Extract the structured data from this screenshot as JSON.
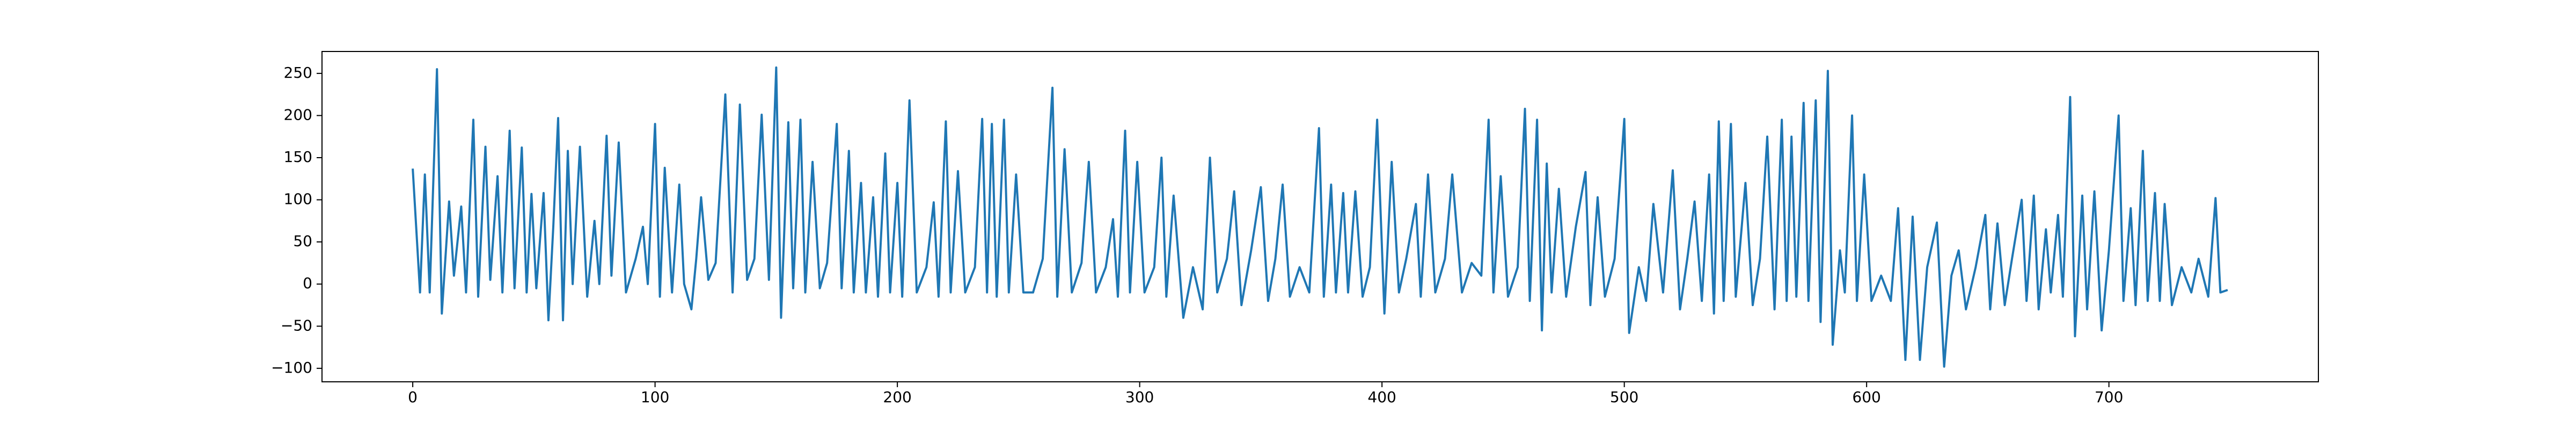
{
  "chart_data": {
    "type": "line",
    "x": [
      0,
      3,
      5,
      7,
      10,
      12,
      15,
      17,
      20,
      22,
      25,
      27,
      30,
      32,
      35,
      37,
      40,
      42,
      45,
      47,
      49,
      51,
      54,
      56,
      58,
      60,
      62,
      64,
      66,
      69,
      72,
      75,
      77,
      80,
      82,
      85,
      88,
      92,
      95,
      97,
      100,
      102,
      104,
      107,
      110,
      112,
      115,
      117,
      119,
      122,
      125,
      129,
      132,
      135,
      138,
      141,
      144,
      147,
      150,
      152,
      155,
      157,
      160,
      162,
      165,
      168,
      171,
      175,
      177,
      180,
      182,
      185,
      187,
      190,
      192,
      195,
      197,
      200,
      202,
      205,
      208,
      212,
      215,
      217,
      220,
      222,
      225,
      228,
      232,
      235,
      237,
      239,
      241,
      244,
      246,
      249,
      252,
      256,
      260,
      264,
      266,
      269,
      272,
      276,
      279,
      282,
      286,
      289,
      291,
      294,
      296,
      299,
      302,
      306,
      309,
      311,
      314,
      318,
      322,
      326,
      329,
      332,
      336,
      339,
      342,
      346,
      350,
      353,
      356,
      359,
      362,
      366,
      370,
      374,
      376,
      379,
      381,
      384,
      386,
      389,
      392,
      395,
      398,
      401,
      404,
      407,
      410,
      414,
      416,
      419,
      422,
      426,
      429,
      433,
      437,
      441,
      444,
      446,
      449,
      452,
      456,
      459,
      461,
      464,
      466,
      468,
      470,
      473,
      476,
      480,
      484,
      486,
      489,
      492,
      496,
      500,
      502,
      506,
      509,
      512,
      516,
      520,
      523,
      526,
      529,
      532,
      535,
      537,
      539,
      541,
      544,
      546,
      550,
      553,
      556,
      559,
      562,
      565,
      567,
      569,
      571,
      574,
      576,
      579,
      581,
      584,
      586,
      589,
      591,
      594,
      596,
      599,
      602,
      606,
      610,
      613,
      616,
      619,
      622,
      625,
      629,
      632,
      635,
      638,
      641,
      645,
      649,
      651,
      654,
      657,
      660,
      664,
      666,
      669,
      671,
      674,
      676,
      679,
      681,
      684,
      686,
      689,
      691,
      694,
      697,
      700,
      704,
      706,
      709,
      711,
      714,
      716,
      719,
      721,
      723,
      726,
      730,
      734,
      737,
      741,
      744,
      746,
      749
    ],
    "series": [
      {
        "color": "#1f77b4",
        "values": [
          137,
          -10,
          130,
          -10,
          255,
          -35,
          98,
          10,
          92,
          -10,
          195,
          -15,
          163,
          5,
          128,
          -10,
          182,
          -5,
          162,
          -10,
          107,
          -5,
          108,
          -43,
          68,
          197,
          -43,
          158,
          0,
          163,
          -15,
          75,
          0,
          176,
          10,
          168,
          -10,
          30,
          68,
          0,
          190,
          -15,
          138,
          -10,
          118,
          0,
          -30,
          30,
          103,
          5,
          25,
          225,
          -10,
          213,
          5,
          30,
          201,
          5,
          257,
          -40,
          192,
          -5,
          195,
          -10,
          145,
          -5,
          25,
          190,
          -5,
          158,
          -10,
          120,
          -10,
          103,
          -15,
          155,
          -10,
          120,
          -15,
          218,
          -10,
          20,
          97,
          -15,
          193,
          -10,
          134,
          -10,
          20,
          196,
          -10,
          190,
          -15,
          195,
          -10,
          130,
          -10,
          -10,
          30,
          233,
          -15,
          160,
          -10,
          25,
          145,
          -10,
          20,
          77,
          -15,
          182,
          -10,
          145,
          -10,
          20,
          150,
          -15,
          105,
          -40,
          20,
          -30,
          150,
          -10,
          30,
          110,
          -25,
          40,
          115,
          -20,
          30,
          118,
          -15,
          20,
          -10,
          185,
          -15,
          118,
          -10,
          108,
          -10,
          110,
          -15,
          20,
          195,
          -35,
          145,
          -10,
          30,
          95,
          -15,
          130,
          -10,
          30,
          130,
          -10,
          25,
          10,
          195,
          -10,
          128,
          -15,
          20,
          208,
          -20,
          195,
          -55,
          143,
          -10,
          113,
          -15,
          68,
          133,
          -25,
          103,
          -15,
          30,
          196,
          -58,
          20,
          -20,
          95,
          -10,
          135,
          -30,
          30,
          98,
          -20,
          130,
          -35,
          193,
          -20,
          190,
          -15,
          120,
          -25,
          30,
          175,
          -30,
          195,
          -20,
          175,
          -15,
          215,
          -20,
          218,
          -45,
          253,
          -72,
          40,
          -10,
          200,
          -20,
          130,
          -20,
          10,
          -20,
          90,
          -90,
          80,
          -90,
          20,
          73,
          -98,
          10,
          40,
          -30,
          20,
          82,
          -30,
          72,
          -25,
          30,
          100,
          -20,
          105,
          -30,
          65,
          -10,
          82,
          -15,
          222,
          -62,
          105,
          -30,
          110,
          -55,
          40,
          200,
          -20,
          90,
          -25,
          158,
          -20,
          108,
          -20,
          95,
          -25,
          20,
          -10,
          30,
          -15,
          102,
          -10,
          -7
        ]
      }
    ],
    "xlim": [
      -37.45,
      786.45
    ],
    "ylim": [
      -116,
      276
    ],
    "xticks": [
      0,
      100,
      200,
      300,
      400,
      500,
      600,
      700
    ],
    "yticks": [
      {
        "value": -100,
        "label": "−100"
      },
      {
        "value": -50,
        "label": "−50"
      },
      0,
      50,
      100,
      150,
      200,
      250
    ],
    "grid": false
  }
}
